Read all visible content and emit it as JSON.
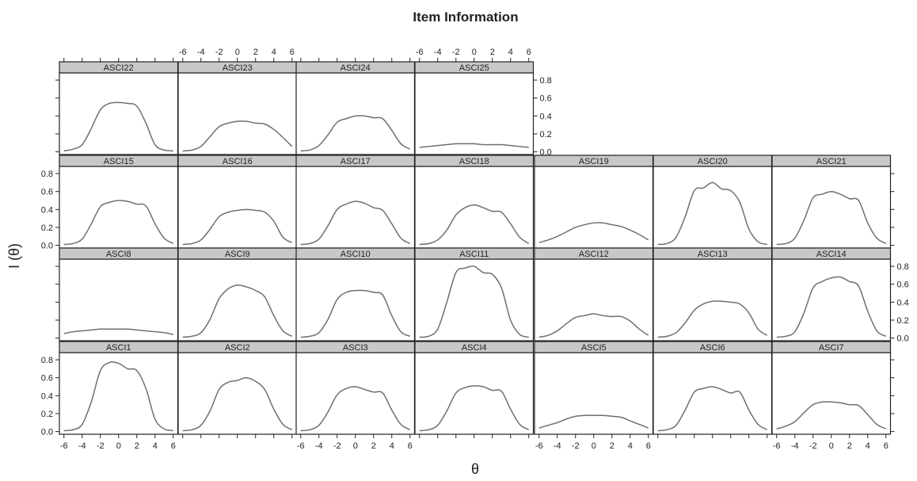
{
  "chart_data": {
    "type": "line",
    "title": "Item Information",
    "xlabel": "θ",
    "ylabel": "I (θ)",
    "xlim": [
      -6.5,
      6.5
    ],
    "ylim": [
      -0.03,
      0.88
    ],
    "x_ticks": [
      -6,
      -4,
      -2,
      0,
      2,
      4,
      6
    ],
    "y_ticks": [
      0.0,
      0.2,
      0.4,
      0.6,
      0.8
    ],
    "y_tick_labels": [
      "0.0",
      "0.2",
      "0.4",
      "0.6",
      "0.8"
    ],
    "x_tick_labels": [
      "-6",
      "-4",
      "-2",
      "0",
      "2",
      "4",
      "6"
    ],
    "x": [
      -6,
      -5,
      -4,
      -3,
      -2,
      -1,
      0,
      1,
      2,
      3,
      4,
      5,
      6
    ],
    "panels": [
      {
        "name": "ASCI22",
        "values": [
          0.01,
          0.03,
          0.08,
          0.26,
          0.47,
          0.54,
          0.55,
          0.54,
          0.51,
          0.32,
          0.08,
          0.02,
          0.01
        ]
      },
      {
        "name": "ASCI23",
        "values": [
          0.01,
          0.02,
          0.06,
          0.17,
          0.28,
          0.32,
          0.34,
          0.34,
          0.32,
          0.31,
          0.25,
          0.16,
          0.06
        ]
      },
      {
        "name": "ASCI24",
        "values": [
          0.01,
          0.02,
          0.07,
          0.19,
          0.33,
          0.37,
          0.4,
          0.4,
          0.38,
          0.37,
          0.24,
          0.09,
          0.03
        ]
      },
      {
        "name": "ASCI25",
        "values": [
          0.05,
          0.06,
          0.07,
          0.08,
          0.09,
          0.09,
          0.09,
          0.08,
          0.08,
          0.08,
          0.07,
          0.06,
          0.05
        ]
      },
      {
        "name": "ASCI15",
        "values": [
          0.01,
          0.02,
          0.07,
          0.24,
          0.43,
          0.48,
          0.5,
          0.49,
          0.46,
          0.44,
          0.24,
          0.08,
          0.02
        ]
      },
      {
        "name": "ASCI16",
        "values": [
          0.01,
          0.02,
          0.06,
          0.18,
          0.32,
          0.37,
          0.39,
          0.4,
          0.39,
          0.37,
          0.27,
          0.09,
          0.03
        ]
      },
      {
        "name": "ASCI17",
        "values": [
          0.01,
          0.02,
          0.07,
          0.22,
          0.4,
          0.46,
          0.49,
          0.47,
          0.42,
          0.39,
          0.24,
          0.08,
          0.02
        ]
      },
      {
        "name": "ASCI18",
        "values": [
          0.01,
          0.02,
          0.06,
          0.17,
          0.34,
          0.42,
          0.45,
          0.42,
          0.38,
          0.37,
          0.24,
          0.09,
          0.02
        ]
      },
      {
        "name": "ASCI19",
        "values": [
          0.03,
          0.06,
          0.1,
          0.15,
          0.2,
          0.23,
          0.25,
          0.25,
          0.23,
          0.21,
          0.17,
          0.12,
          0.06
        ]
      },
      {
        "name": "ASCI20",
        "values": [
          0.01,
          0.02,
          0.09,
          0.32,
          0.61,
          0.64,
          0.7,
          0.63,
          0.61,
          0.48,
          0.18,
          0.04,
          0.01
        ]
      },
      {
        "name": "ASCI21",
        "values": [
          0.01,
          0.02,
          0.08,
          0.28,
          0.53,
          0.57,
          0.6,
          0.57,
          0.52,
          0.5,
          0.25,
          0.08,
          0.02
        ]
      },
      {
        "name": "ASCI8",
        "values": [
          0.05,
          0.07,
          0.08,
          0.09,
          0.1,
          0.1,
          0.1,
          0.1,
          0.09,
          0.08,
          0.07,
          0.06,
          0.04
        ]
      },
      {
        "name": "ASCI9",
        "values": [
          0.01,
          0.02,
          0.06,
          0.21,
          0.44,
          0.55,
          0.59,
          0.57,
          0.53,
          0.46,
          0.25,
          0.08,
          0.02
        ]
      },
      {
        "name": "ASCI10",
        "values": [
          0.01,
          0.02,
          0.06,
          0.21,
          0.43,
          0.51,
          0.53,
          0.53,
          0.51,
          0.48,
          0.25,
          0.07,
          0.02
        ]
      },
      {
        "name": "ASCI11",
        "values": [
          0.01,
          0.02,
          0.1,
          0.4,
          0.73,
          0.78,
          0.8,
          0.73,
          0.71,
          0.56,
          0.2,
          0.04,
          0.01
        ]
      },
      {
        "name": "ASCI12",
        "values": [
          0.01,
          0.03,
          0.08,
          0.16,
          0.23,
          0.25,
          0.27,
          0.25,
          0.24,
          0.24,
          0.19,
          0.1,
          0.03
        ]
      },
      {
        "name": "ASCI13",
        "values": [
          0.01,
          0.02,
          0.06,
          0.17,
          0.31,
          0.38,
          0.41,
          0.41,
          0.4,
          0.38,
          0.28,
          0.1,
          0.03
        ]
      },
      {
        "name": "ASCI14",
        "values": [
          0.01,
          0.02,
          0.07,
          0.28,
          0.56,
          0.63,
          0.67,
          0.68,
          0.63,
          0.58,
          0.3,
          0.08,
          0.02
        ]
      },
      {
        "name": "ASCI1",
        "values": [
          0.01,
          0.02,
          0.08,
          0.33,
          0.68,
          0.77,
          0.76,
          0.7,
          0.68,
          0.48,
          0.14,
          0.03,
          0.01
        ]
      },
      {
        "name": "ASCI2",
        "values": [
          0.01,
          0.02,
          0.07,
          0.23,
          0.47,
          0.55,
          0.57,
          0.6,
          0.56,
          0.47,
          0.25,
          0.08,
          0.02
        ]
      },
      {
        "name": "ASCI3",
        "values": [
          0.01,
          0.02,
          0.07,
          0.22,
          0.41,
          0.48,
          0.5,
          0.47,
          0.44,
          0.43,
          0.24,
          0.08,
          0.02
        ]
      },
      {
        "name": "ASCI4",
        "values": [
          0.01,
          0.02,
          0.07,
          0.23,
          0.43,
          0.49,
          0.51,
          0.5,
          0.46,
          0.45,
          0.25,
          0.08,
          0.02
        ]
      },
      {
        "name": "ASCI5",
        "values": [
          0.04,
          0.07,
          0.1,
          0.14,
          0.17,
          0.18,
          0.18,
          0.18,
          0.17,
          0.16,
          0.12,
          0.08,
          0.04
        ]
      },
      {
        "name": "ASCI6",
        "values": [
          0.01,
          0.02,
          0.07,
          0.24,
          0.44,
          0.48,
          0.5,
          0.47,
          0.43,
          0.44,
          0.24,
          0.08,
          0.02
        ]
      },
      {
        "name": "ASCI7",
        "values": [
          0.03,
          0.06,
          0.11,
          0.21,
          0.3,
          0.33,
          0.33,
          0.32,
          0.3,
          0.29,
          0.19,
          0.08,
          0.03
        ]
      }
    ]
  }
}
